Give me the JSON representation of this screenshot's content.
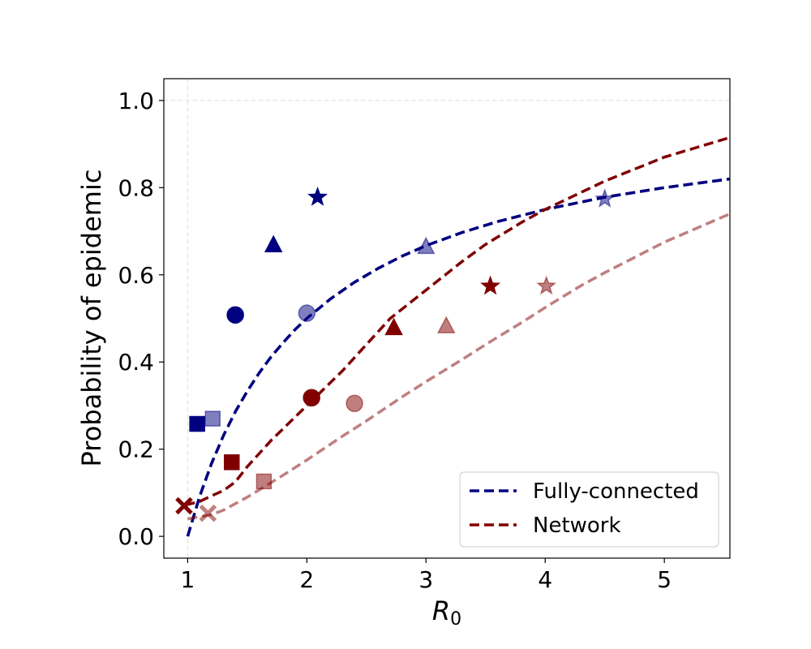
{
  "chart_data": {
    "type": "line",
    "title": "",
    "xlabel_base": "R",
    "xlabel_sub": "0",
    "ylabel": "Probability of epidemic",
    "xlim": [
      0.8,
      5.55
    ],
    "ylim": [
      -0.05,
      1.05
    ],
    "xticks": [
      1,
      2,
      3,
      4,
      5
    ],
    "yticks": [
      0.0,
      0.2,
      0.4,
      0.6,
      0.8,
      1.0
    ],
    "xtick_labels": [
      "1",
      "2",
      "3",
      "4",
      "5"
    ],
    "ytick_labels": [
      "0.0",
      "0.2",
      "0.4",
      "0.6",
      "0.8",
      "1.0"
    ],
    "legend_position": "lower-right",
    "legend": [
      {
        "label": "Fully-connected",
        "color": "#000080"
      },
      {
        "label": "Network",
        "color": "#800000"
      }
    ],
    "reference_lines": {
      "x": 1,
      "y": 1,
      "style": "light-gray-dashed"
    },
    "curves": [
      {
        "color": "#000080",
        "alpha": 1.0,
        "points": [
          [
            1.0,
            0.0
          ],
          [
            1.1,
            0.091
          ],
          [
            1.2,
            0.167
          ],
          [
            1.3,
            0.231
          ],
          [
            1.4,
            0.286
          ],
          [
            1.5,
            0.333
          ],
          [
            1.6,
            0.375
          ],
          [
            1.7,
            0.412
          ],
          [
            1.8,
            0.444
          ],
          [
            1.9,
            0.474
          ],
          [
            2.0,
            0.5
          ],
          [
            2.2,
            0.545
          ],
          [
            2.4,
            0.583
          ],
          [
            2.6,
            0.615
          ],
          [
            2.8,
            0.643
          ],
          [
            3.0,
            0.667
          ],
          [
            3.3,
            0.697
          ],
          [
            3.6,
            0.722
          ],
          [
            4.0,
            0.75
          ],
          [
            4.5,
            0.778
          ],
          [
            5.0,
            0.8
          ],
          [
            5.55,
            0.82
          ]
        ]
      },
      {
        "color": "#000080",
        "alpha": 0.5,
        "points": [
          [
            1.0,
            0.0
          ],
          [
            1.1,
            0.091
          ],
          [
            1.2,
            0.167
          ],
          [
            1.3,
            0.231
          ],
          [
            1.4,
            0.286
          ],
          [
            1.5,
            0.333
          ],
          [
            1.6,
            0.375
          ],
          [
            1.7,
            0.412
          ],
          [
            1.8,
            0.444
          ],
          [
            1.9,
            0.474
          ],
          [
            2.0,
            0.5
          ],
          [
            2.2,
            0.545
          ],
          [
            2.4,
            0.583
          ],
          [
            2.6,
            0.615
          ],
          [
            2.8,
            0.643
          ],
          [
            3.0,
            0.667
          ],
          [
            3.3,
            0.697
          ],
          [
            3.6,
            0.722
          ],
          [
            4.0,
            0.75
          ],
          [
            4.5,
            0.778
          ],
          [
            5.0,
            0.8
          ],
          [
            5.55,
            0.82
          ]
        ]
      },
      {
        "color": "#800000",
        "alpha": 1.0,
        "points": [
          [
            0.98,
            0.072
          ],
          [
            1.1,
            0.08
          ],
          [
            1.2,
            0.093
          ],
          [
            1.3,
            0.105
          ],
          [
            1.4,
            0.125
          ],
          [
            1.5,
            0.16
          ],
          [
            1.7,
            0.22
          ],
          [
            2.0,
            0.3
          ],
          [
            2.3,
            0.38
          ],
          [
            2.5,
            0.44
          ],
          [
            2.7,
            0.5
          ],
          [
            3.0,
            0.565
          ],
          [
            3.3,
            0.63
          ],
          [
            3.5,
            0.67
          ],
          [
            3.8,
            0.72
          ],
          [
            4.0,
            0.75
          ],
          [
            4.5,
            0.815
          ],
          [
            5.0,
            0.87
          ],
          [
            5.55,
            0.915
          ]
        ]
      },
      {
        "color": "#800000",
        "alpha": 0.5,
        "points": [
          [
            1.0,
            0.04
          ],
          [
            1.1,
            0.045
          ],
          [
            1.2,
            0.05
          ],
          [
            1.3,
            0.06
          ],
          [
            1.5,
            0.09
          ],
          [
            1.8,
            0.14
          ],
          [
            2.0,
            0.175
          ],
          [
            2.3,
            0.23
          ],
          [
            2.5,
            0.265
          ],
          [
            2.8,
            0.32
          ],
          [
            3.0,
            0.355
          ],
          [
            3.3,
            0.405
          ],
          [
            3.5,
            0.44
          ],
          [
            3.8,
            0.49
          ],
          [
            4.0,
            0.525
          ],
          [
            4.3,
            0.575
          ],
          [
            4.5,
            0.605
          ],
          [
            5.0,
            0.675
          ],
          [
            5.55,
            0.74
          ]
        ]
      }
    ],
    "markers": [
      {
        "shape": "square",
        "color": "#000080",
        "alpha": 1.0,
        "x": 1.08,
        "y": 0.258
      },
      {
        "shape": "circle",
        "color": "#000080",
        "alpha": 1.0,
        "x": 1.4,
        "y": 0.508
      },
      {
        "shape": "triangle",
        "color": "#000080",
        "alpha": 1.0,
        "x": 1.72,
        "y": 0.668
      },
      {
        "shape": "star",
        "color": "#000080",
        "alpha": 1.0,
        "x": 2.09,
        "y": 0.778
      },
      {
        "shape": "square",
        "color": "#000080",
        "alpha": 0.5,
        "x": 1.21,
        "y": 0.27
      },
      {
        "shape": "circle",
        "color": "#000080",
        "alpha": 0.5,
        "x": 2.0,
        "y": 0.512
      },
      {
        "shape": "triangle",
        "color": "#000080",
        "alpha": 0.5,
        "x": 3.0,
        "y": 0.664
      },
      {
        "shape": "star",
        "color": "#000080",
        "alpha": 0.5,
        "x": 4.5,
        "y": 0.774
      },
      {
        "shape": "x",
        "color": "#800000",
        "alpha": 1.0,
        "x": 0.97,
        "y": 0.07
      },
      {
        "shape": "square",
        "color": "#800000",
        "alpha": 1.0,
        "x": 1.37,
        "y": 0.17
      },
      {
        "shape": "circle",
        "color": "#800000",
        "alpha": 1.0,
        "x": 2.04,
        "y": 0.318
      },
      {
        "shape": "triangle",
        "color": "#800000",
        "alpha": 1.0,
        "x": 2.73,
        "y": 0.478
      },
      {
        "shape": "star",
        "color": "#800000",
        "alpha": 1.0,
        "x": 3.54,
        "y": 0.574
      },
      {
        "shape": "x",
        "color": "#800000",
        "alpha": 0.5,
        "x": 1.17,
        "y": 0.053
      },
      {
        "shape": "square",
        "color": "#800000",
        "alpha": 0.5,
        "x": 1.64,
        "y": 0.126
      },
      {
        "shape": "circle",
        "color": "#800000",
        "alpha": 0.5,
        "x": 2.4,
        "y": 0.305
      },
      {
        "shape": "triangle",
        "color": "#800000",
        "alpha": 0.5,
        "x": 3.17,
        "y": 0.482
      },
      {
        "shape": "star",
        "color": "#800000",
        "alpha": 0.5,
        "x": 4.01,
        "y": 0.574
      }
    ]
  }
}
